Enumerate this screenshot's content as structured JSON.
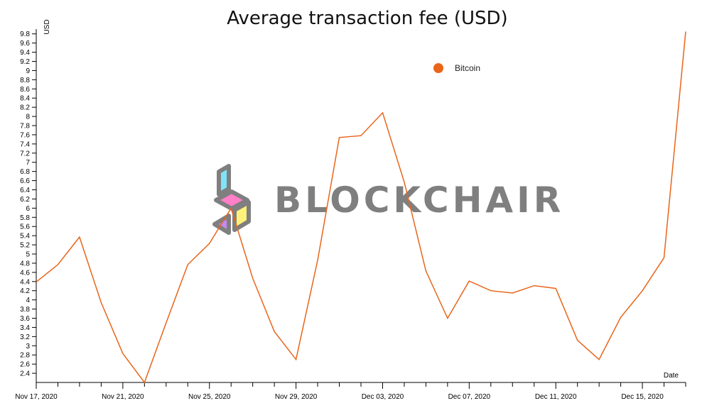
{
  "chart_data": {
    "type": "line",
    "title": "Average transaction fee (USD)",
    "ylabel": "USD",
    "xlabel": "Date",
    "ylim": [
      2.2,
      9.85
    ],
    "y_ticks": [
      "2.4",
      "2.6",
      "2.8",
      "3",
      "3.2",
      "3.4",
      "3.6",
      "3.8",
      "4",
      "4.2",
      "4.4",
      "4.6",
      "4.8",
      "5",
      "5.2",
      "5.4",
      "5.6",
      "5.8",
      "6",
      "6.2",
      "6.4",
      "6.6",
      "6.8",
      "7",
      "7.2",
      "7.4",
      "7.6",
      "7.8",
      "8",
      "8.2",
      "8.4",
      "8.6",
      "8.8",
      "9",
      "9.2",
      "9.4",
      "9.6",
      "9.8"
    ],
    "x_tick_labels": [
      "Nov 17, 2020",
      "Nov 21, 2020",
      "Nov 25, 2020",
      "Nov 29, 2020",
      "Dec 03, 2020",
      "Dec 07, 2020",
      "Dec 11, 2020",
      "Dec 15, 2020"
    ],
    "x": [
      "2020-11-17",
      "2020-11-18",
      "2020-11-19",
      "2020-11-20",
      "2020-11-21",
      "2020-11-22",
      "2020-11-23",
      "2020-11-24",
      "2020-11-25",
      "2020-11-26",
      "2020-11-27",
      "2020-11-28",
      "2020-11-29",
      "2020-11-30",
      "2020-12-01",
      "2020-12-02",
      "2020-12-03",
      "2020-12-04",
      "2020-12-05",
      "2020-12-06",
      "2020-12-07",
      "2020-12-08",
      "2020-12-09",
      "2020-12-10",
      "2020-12-11",
      "2020-12-12",
      "2020-12-13",
      "2020-12-14",
      "2020-12-15",
      "2020-12-16",
      "2020-12-17"
    ],
    "series": [
      {
        "name": "Bitcoin",
        "color": "#e8651a",
        "values": [
          4.39,
          4.77,
          5.37,
          3.94,
          2.83,
          2.2,
          3.5,
          4.77,
          5.23,
          6.0,
          4.47,
          3.31,
          2.7,
          4.87,
          7.54,
          7.58,
          8.08,
          6.57,
          4.63,
          3.6,
          4.41,
          4.2,
          4.15,
          4.31,
          4.25,
          3.12,
          2.7,
          3.62,
          4.2,
          4.92,
          9.85
        ]
      }
    ],
    "grid": false,
    "legend": "top-right"
  },
  "watermark": "BLOCKCHAIR"
}
